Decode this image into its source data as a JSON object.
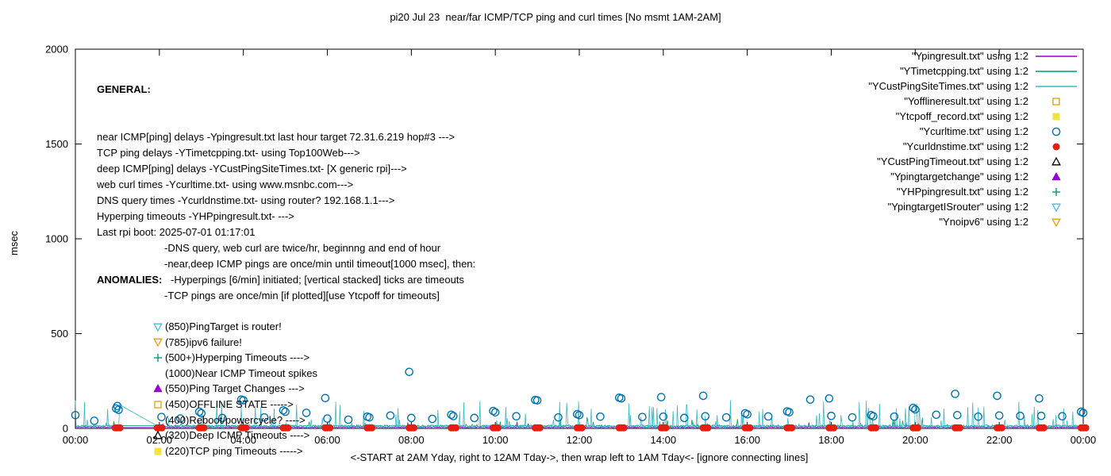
{
  "chart_data": {
    "type": "line+scatter",
    "title": "pi20 Jul 23  near/far ICMP/TCP ping and curl times [No msmt 1AM-2AM]",
    "ylabel": "msec",
    "xlabel": "<-START at 2AM Yday, right to 12AM Tday->, then wrap left to 1AM Tday<- [ignore connecting lines]",
    "xlim": [
      0,
      24
    ],
    "ylim": [
      0,
      2000
    ],
    "grid": false,
    "legend_position": "top-right",
    "x_tick_hours": [
      0,
      2,
      4,
      6,
      8,
      10,
      12,
      14,
      16,
      18,
      20,
      22,
      24
    ],
    "x_tick_labels": [
      "00:00",
      "02:00",
      "04:00",
      "06:00",
      "08:00",
      "10:00",
      "12:00",
      "14:00",
      "16:00",
      "18:00",
      "20:00",
      "22:00",
      "00:00"
    ],
    "y_ticks": [
      0,
      500,
      1000,
      1500,
      2000
    ],
    "measurement_gap_hours": [
      1.05,
      2.0
    ],
    "series": [
      {
        "name": "Ypingresult.txt",
        "style": "line",
        "color": "#9400D3",
        "gen": {
          "base": 4,
          "jitter": 5,
          "spike_prob": 0.004,
          "spike_min": 15,
          "spike_max": 35,
          "seed": 11
        }
      },
      {
        "name": "YTimetcpping.txt",
        "style": "line",
        "color": "#009E73",
        "gen": {
          "base": 8,
          "jitter": 10,
          "spike_prob": 0.015,
          "spike_min": 20,
          "spike_max": 60,
          "seed": 22
        }
      },
      {
        "name": "YCustPingSiteTimes.txt",
        "style": "line",
        "color": "#3BB9C4",
        "gen": {
          "base": 3,
          "jitter": 14,
          "spike_prob": 0.085,
          "spike_min": 25,
          "spike_max": 150,
          "seed": 7,
          "gap_peak": 125
        }
      },
      {
        "name": "Ycurltime.txt",
        "style": "circle-open",
        "color": "#0072B2",
        "points": [
          [
            0.0,
            70
          ],
          [
            0.45,
            40
          ],
          [
            0.97,
            105
          ],
          [
            1.0,
            118
          ],
          [
            1.03,
            98
          ],
          [
            2.05,
            60
          ],
          [
            2.5,
            52
          ],
          [
            2.95,
            88
          ],
          [
            3.0,
            80
          ],
          [
            3.5,
            55
          ],
          [
            3.95,
            152
          ],
          [
            4.0,
            148
          ],
          [
            4.5,
            58
          ],
          [
            4.95,
            95
          ],
          [
            5.0,
            88
          ],
          [
            5.5,
            82
          ],
          [
            5.95,
            160
          ],
          [
            6.0,
            52
          ],
          [
            6.5,
            46
          ],
          [
            6.95,
            62
          ],
          [
            7.0,
            58
          ],
          [
            7.5,
            68
          ],
          [
            7.95,
            298
          ],
          [
            8.0,
            55
          ],
          [
            8.5,
            50
          ],
          [
            8.95,
            72
          ],
          [
            9.0,
            65
          ],
          [
            9.5,
            55
          ],
          [
            9.95,
            92
          ],
          [
            10.0,
            85
          ],
          [
            10.5,
            64
          ],
          [
            10.95,
            150
          ],
          [
            11.0,
            148
          ],
          [
            11.5,
            58
          ],
          [
            11.95,
            75
          ],
          [
            12.0,
            70
          ],
          [
            12.5,
            62
          ],
          [
            12.95,
            162
          ],
          [
            13.0,
            158
          ],
          [
            13.5,
            60
          ],
          [
            13.95,
            165
          ],
          [
            14.0,
            62
          ],
          [
            14.5,
            55
          ],
          [
            14.95,
            172
          ],
          [
            15.0,
            64
          ],
          [
            15.5,
            58
          ],
          [
            15.95,
            80
          ],
          [
            16.0,
            74
          ],
          [
            16.5,
            63
          ],
          [
            16.95,
            90
          ],
          [
            17.0,
            85
          ],
          [
            17.5,
            152
          ],
          [
            17.95,
            158
          ],
          [
            18.0,
            66
          ],
          [
            18.5,
            58
          ],
          [
            18.95,
            70
          ],
          [
            19.0,
            64
          ],
          [
            19.5,
            62
          ],
          [
            19.95,
            108
          ],
          [
            20.0,
            100
          ],
          [
            20.5,
            72
          ],
          [
            20.95,
            182
          ],
          [
            21.0,
            70
          ],
          [
            21.5,
            62
          ],
          [
            21.95,
            172
          ],
          [
            22.0,
            68
          ],
          [
            22.5,
            66
          ],
          [
            22.95,
            158
          ],
          [
            23.0,
            66
          ],
          [
            23.5,
            64
          ],
          [
            23.95,
            88
          ],
          [
            24.0,
            82
          ]
        ]
      },
      {
        "name": "Ycurldnstime.txt",
        "style": "circle-fill",
        "color": "#E51E10",
        "points_spec": {
          "hours": [
            1,
            2,
            3,
            4,
            5,
            6,
            7,
            8,
            9,
            10,
            11,
            12,
            13,
            14,
            15,
            16,
            17,
            18,
            19,
            20,
            21,
            22,
            23,
            24
          ],
          "value": 3,
          "offsets": [
            -0.05,
            0,
            0.06
          ]
        }
      }
    ]
  },
  "legend": [
    {
      "label": "\"Ypingresult.txt\" using 1:2",
      "icon": "line",
      "color": "#9400D3"
    },
    {
      "label": "\"YTimetcpping.txt\" using 1:2",
      "icon": "line",
      "color": "#009E73"
    },
    {
      "label": "\"YCustPingSiteTimes.txt\" using 1:2",
      "icon": "line",
      "color": "#3BB9C4"
    },
    {
      "label": "\"Yofflineresult.txt\" using 1:2",
      "icon": "square-open",
      "color": "#E69F00"
    },
    {
      "label": "\"Ytcpoff_record.txt\" using 1:2",
      "icon": "square-fill",
      "color": "#F0E442"
    },
    {
      "label": "\"Ycurltime.txt\" using 1:2",
      "icon": "circle-open",
      "color": "#0072B2"
    },
    {
      "label": "\"Ycurldnstime.txt\" using 1:2",
      "icon": "circle-fill",
      "color": "#E51E10"
    },
    {
      "label": "\"YCustPingTimeout.txt\" using 1:2",
      "icon": "triangle-open",
      "color": "#000000"
    },
    {
      "label": "\"Ypingtargetchange\" using 1:2",
      "icon": "triangle-fill",
      "color": "#9400D3"
    },
    {
      "label": "\"YHPpingresult.txt\" using 1:2",
      "icon": "plus",
      "color": "#009E73"
    },
    {
      "label": "\"YpingtargetISrouter\" using 1:2",
      "icon": "tri-down-open",
      "color": "#56B4E9"
    },
    {
      "label": "\"Ynoipv6\" using 1:2",
      "icon": "tri-down-open",
      "color": "#E69F00"
    }
  ],
  "general": {
    "heading": "GENERAL:",
    "lines": [
      {
        "text": "near ICMP[ping] delays -Ypingresult.txt last hour target 72.31.6.219 hop#3 --->",
        "indent": 0
      },
      {
        "text": "TCP ping delays -YTimetcpping.txt- using Top100Web--->",
        "indent": 0
      },
      {
        "text": "deep ICMP[ping] delays -YCustPingSiteTimes.txt- [X generic rpi]--->",
        "indent": 0
      },
      {
        "text": "web curl times -Ycurltime.txt- using www.msnbc.com--->",
        "indent": 0
      },
      {
        "text": "DNS query times -Ycurldnstime.txt- using router? 192.168.1.1--->",
        "indent": 0
      },
      {
        "text": "Hyperping timeouts -YHPpingresult.txt- --->",
        "indent": 0
      },
      {
        "text": "Last rpi boot: 2025-07-01 01:17:01",
        "indent": 0
      },
      {
        "text": "-DNS query, web curl are twice/hr, beginnng and end of hour",
        "indent": 1
      },
      {
        "text": "-near,deep ICMP pings are once/min until timeout[1000 msec], then:",
        "indent": 1
      },
      {
        "text": "-Hyperpings [6/min] initiated; [vertical stacked] ticks are timeouts",
        "indent": 2
      },
      {
        "text": "-TCP pings are once/min [if plotted][use Ytcpoff for timeouts]",
        "indent": 1
      }
    ]
  },
  "anomalies": {
    "heading": "ANOMALIES:",
    "items": [
      {
        "icon": "tri-down-open",
        "color": "#56B4E9",
        "text": "(850)PingTarget is router!"
      },
      {
        "icon": "tri-down-open",
        "color": "#E69F00",
        "text": "(785)ipv6 failure!"
      },
      {
        "icon": "plus",
        "color": "#009E73",
        "text": "(500+)Hyperping Timeouts ---->"
      },
      {
        "icon": "",
        "color": "",
        "text": "(1000)Near ICMP Timeout spikes"
      },
      {
        "icon": "triangle-fill",
        "color": "#9400D3",
        "text": "(550)Ping Target Changes --->"
      },
      {
        "icon": "square-open",
        "color": "#E69F00",
        "text": "(450)OFFLINE STATE ----->"
      },
      {
        "icon": "",
        "color": "",
        "text": "(400)Reboot/powercycle? ---->"
      },
      {
        "icon": "triangle-open",
        "color": "#000000",
        "text": "(320)Deep ICMP Timeouts ---->"
      },
      {
        "icon": "square-fill",
        "color": "#F0E442",
        "text": "(220)TCP ping Timeouts ----->"
      }
    ]
  }
}
